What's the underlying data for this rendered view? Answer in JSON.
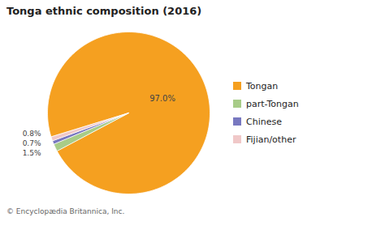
{
  "chart_data": {
    "type": "pie",
    "title": "Tonga ethnic composition (2016)",
    "categories": [
      "Tongan",
      "part-Tongan",
      "Chinese",
      "Fijian/other"
    ],
    "values": [
      97.0,
      1.5,
      0.7,
      0.8
    ],
    "colors": [
      "#F5A020",
      "#A8CC88",
      "#7878C0",
      "#F0C8C8"
    ],
    "data_labels": true,
    "value_labels": [
      "97.0%",
      "1.5%",
      "0.7%",
      "0.8%"
    ],
    "legend": "right",
    "caption": "© Encyclopædia Britannica, Inc."
  }
}
